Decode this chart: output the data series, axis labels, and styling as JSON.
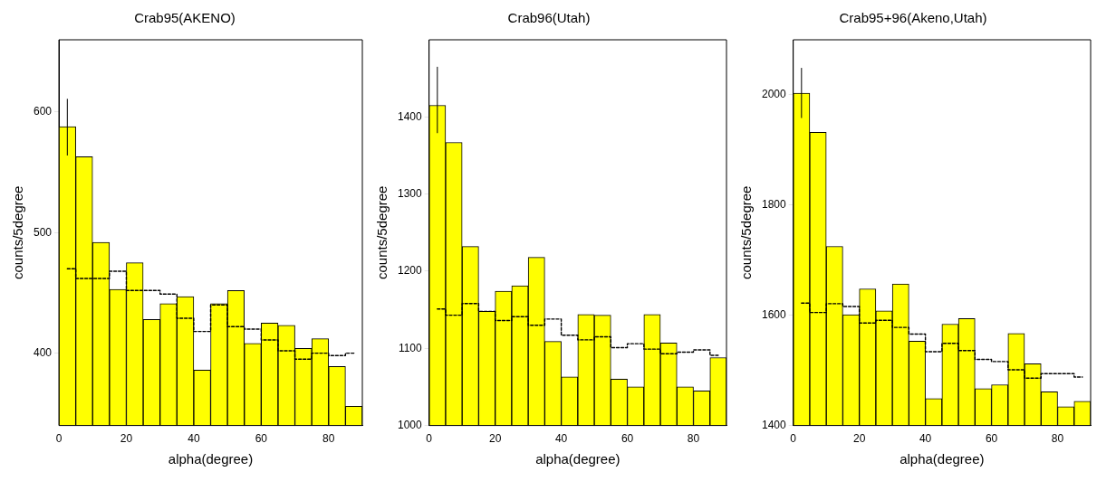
{
  "chart_data": [
    {
      "type": "histogram",
      "title": "Crab95(AKENO)",
      "xlabel": "alpha(degree)",
      "ylabel": "counts/5degree",
      "bins": [
        0,
        5,
        10,
        15,
        20,
        25,
        30,
        35,
        40,
        45,
        50,
        55,
        60,
        65,
        70,
        75,
        80,
        85,
        90
      ],
      "xlim": [
        0,
        90
      ],
      "xticks": [
        0,
        20,
        40,
        60,
        80
      ],
      "ylim": [
        340,
        660
      ],
      "yticks": [
        400,
        500,
        600
      ],
      "legend": false,
      "series": [
        {
          "type": "histogram",
          "color": "#ffff00",
          "values": [
            588,
            563,
            492,
            453,
            475,
            428,
            441,
            447,
            386,
            441,
            452,
            408,
            425,
            423,
            404,
            412,
            389,
            356
          ],
          "errors": [
            [
              564,
              611
            ],
            null,
            null,
            null,
            null,
            null,
            null,
            null,
            null,
            null,
            null,
            null,
            null,
            null,
            null,
            null,
            null,
            null
          ]
        },
        {
          "type": "step",
          "color": "#000000",
          "line_style": "dashed",
          "x": [
            2.5,
            7.5,
            12.5,
            17.5,
            22.5,
            27.5,
            32.5,
            37.5,
            42.5,
            47.5,
            52.5,
            57.5,
            62.5,
            67.5,
            72.5,
            77.5,
            82.5,
            87.5
          ],
          "values": [
            470,
            462,
            462,
            468,
            452,
            452,
            449,
            429,
            418,
            440,
            422,
            420,
            411,
            402,
            395,
            400,
            398,
            400
          ]
        }
      ]
    },
    {
      "type": "histogram",
      "title": "Crab96(Utah)",
      "xlabel": "alpha(degree)",
      "ylabel": "counts/5degree",
      "bins": [
        0,
        5,
        10,
        15,
        20,
        25,
        30,
        35,
        40,
        45,
        50,
        55,
        60,
        65,
        70,
        75,
        80,
        85,
        90
      ],
      "xlim": [
        0,
        90
      ],
      "xticks": [
        0,
        20,
        40,
        60,
        80
      ],
      "ylim": [
        1000,
        1500
      ],
      "yticks": [
        1000,
        1100,
        1200,
        1300,
        1400
      ],
      "legend": false,
      "series": [
        {
          "type": "histogram",
          "color": "#ffff00",
          "values": [
            1415,
            1367,
            1232,
            1148,
            1174,
            1181,
            1218,
            1109,
            1063,
            1144,
            1143,
            1060,
            1050,
            1144,
            1107,
            1050,
            1045,
            1088
          ],
          "errors": [
            [
              1379,
              1465
            ],
            null,
            null,
            null,
            null,
            null,
            null,
            null,
            null,
            null,
            null,
            null,
            null,
            null,
            null,
            null,
            null,
            null
          ]
        },
        {
          "type": "step",
          "color": "#000000",
          "line_style": "dashed",
          "x": [
            2.5,
            7.5,
            12.5,
            17.5,
            22.5,
            27.5,
            32.5,
            37.5,
            42.5,
            47.5,
            52.5,
            57.5,
            62.5,
            67.5,
            72.5,
            77.5,
            82.5,
            87.5
          ],
          "values": [
            1151,
            1143,
            1158,
            1148,
            1136,
            1141,
            1130,
            1138,
            1117,
            1111,
            1115,
            1101,
            1106,
            1099,
            1093,
            1095,
            1098,
            1091
          ]
        }
      ]
    },
    {
      "type": "histogram",
      "title": "Crab95+96(Akeno,Utah)",
      "xlabel": "alpha(degree)",
      "ylabel": "counts/5degree",
      "bins": [
        0,
        5,
        10,
        15,
        20,
        25,
        30,
        35,
        40,
        45,
        50,
        55,
        60,
        65,
        70,
        75,
        80,
        85,
        90
      ],
      "xlim": [
        0,
        90
      ],
      "xticks": [
        0,
        20,
        40,
        60,
        80
      ],
      "ylim": [
        1400,
        2100
      ],
      "yticks": [
        1400,
        1600,
        1800,
        2000
      ],
      "legend": false,
      "series": [
        {
          "type": "histogram",
          "color": "#ffff00",
          "values": [
            2003,
            1932,
            1725,
            1601,
            1648,
            1608,
            1657,
            1553,
            1449,
            1584,
            1594,
            1467,
            1474,
            1567,
            1512,
            1461,
            1434,
            1444
          ],
          "errors": [
            [
              1958,
              2049
            ],
            null,
            null,
            null,
            null,
            null,
            null,
            null,
            null,
            null,
            null,
            null,
            null,
            null,
            null,
            null,
            null,
            null
          ]
        },
        {
          "type": "step",
          "color": "#000000",
          "line_style": "dashed",
          "x": [
            2.5,
            7.5,
            12.5,
            17.5,
            22.5,
            27.5,
            32.5,
            37.5,
            42.5,
            47.5,
            52.5,
            57.5,
            62.5,
            67.5,
            72.5,
            77.5,
            82.5,
            87.5
          ],
          "values": [
            1622,
            1605,
            1621,
            1616,
            1586,
            1591,
            1578,
            1566,
            1534,
            1549,
            1536,
            1520,
            1516,
            1501,
            1486,
            1494,
            1494,
            1488
          ]
        }
      ]
    }
  ]
}
